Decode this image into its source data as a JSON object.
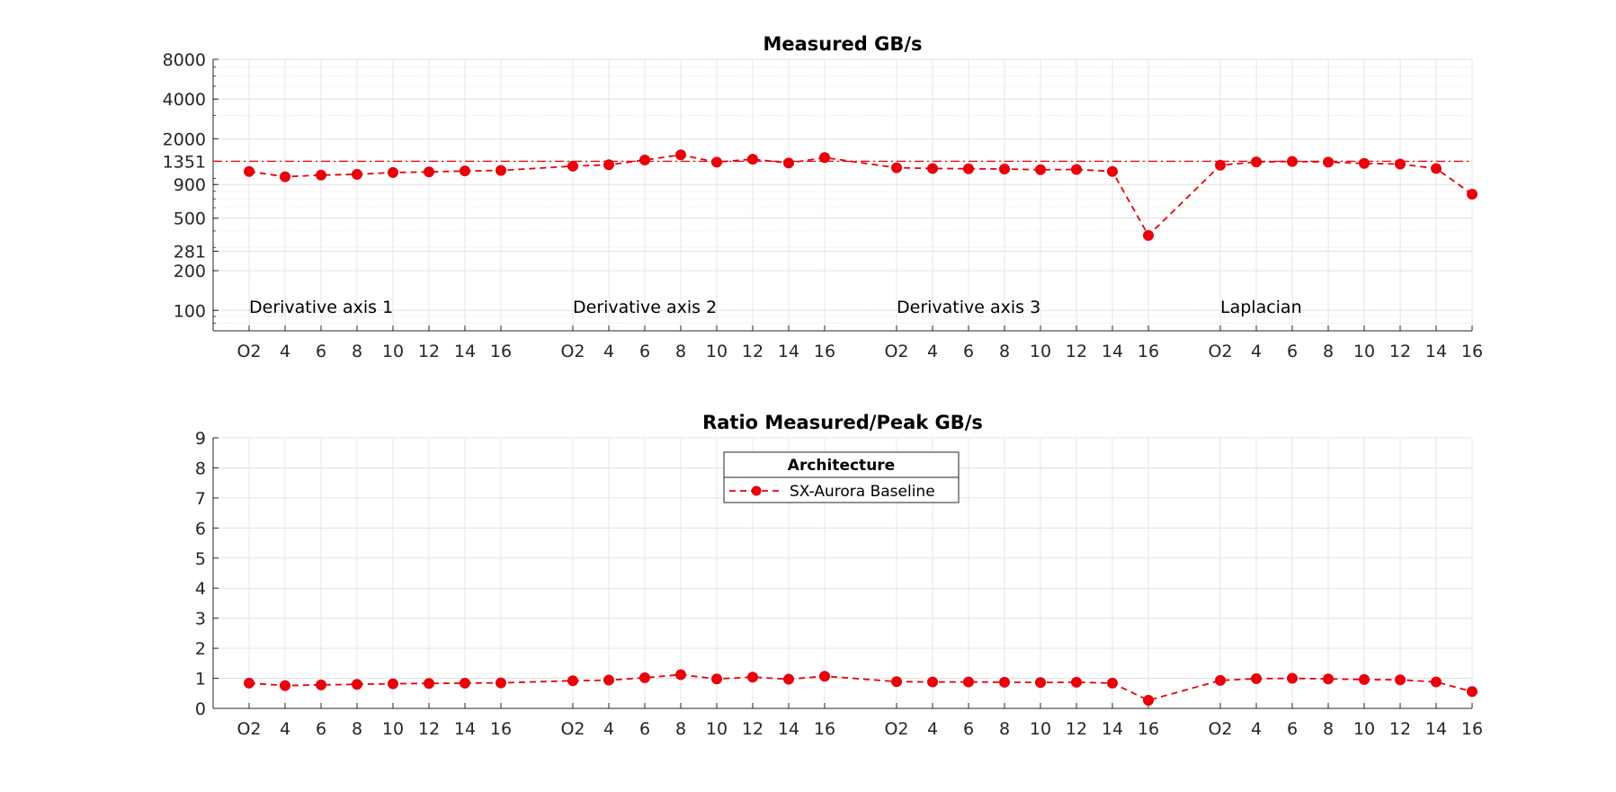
{
  "chart_data": [
    {
      "type": "line",
      "title": "Measured GB/s",
      "y_scale": "log",
      "ylim": [
        70,
        8000
      ],
      "y_ticks": [
        100,
        200,
        281,
        500,
        900,
        1351,
        2000,
        4000,
        8000
      ],
      "grid": true,
      "minor_grid": true,
      "reference_line": {
        "value": 1351,
        "style": "dash-dot",
        "color": "#e8000b"
      },
      "categories": [
        "O2",
        "4",
        "6",
        "8",
        "10",
        "12",
        "14",
        "16"
      ],
      "groups": [
        {
          "label": "Derivative axis 1",
          "values": [
            1130,
            1030,
            1060,
            1075,
            1110,
            1120,
            1140,
            1150
          ]
        },
        {
          "label": "Derivative axis 2",
          "values": [
            1240,
            1270,
            1380,
            1510,
            1330,
            1400,
            1310,
            1440
          ]
        },
        {
          "label": "Derivative axis 3",
          "values": [
            1205,
            1190,
            1185,
            1180,
            1165,
            1170,
            1130,
            370
          ]
        },
        {
          "label": "Laplacian",
          "values": [
            1260,
            1335,
            1345,
            1330,
            1300,
            1285,
            1190,
            760
          ]
        }
      ],
      "series": [
        {
          "name": "SX-Aurora Baseline",
          "color": "#e8000b",
          "line": "dashed",
          "marker": "circle"
        }
      ]
    },
    {
      "type": "line",
      "title": "Ratio Measured/Peak GB/s",
      "ylim": [
        0,
        9
      ],
      "y_ticks": [
        0,
        1,
        2,
        3,
        4,
        5,
        6,
        7,
        8,
        9
      ],
      "grid": true,
      "legend": {
        "title": "Architecture",
        "placement": "top-center"
      },
      "categories": [
        "O2",
        "4",
        "6",
        "8",
        "10",
        "12",
        "14",
        "16"
      ],
      "groups": [
        {
          "label": "Derivative axis 1",
          "values": [
            0.84,
            0.76,
            0.78,
            0.8,
            0.82,
            0.83,
            0.84,
            0.85
          ]
        },
        {
          "label": "Derivative axis 2",
          "values": [
            0.92,
            0.94,
            1.02,
            1.12,
            0.98,
            1.04,
            0.97,
            1.07
          ]
        },
        {
          "label": "Derivative axis 3",
          "values": [
            0.89,
            0.88,
            0.88,
            0.87,
            0.86,
            0.87,
            0.84,
            0.27
          ]
        },
        {
          "label": "Laplacian",
          "values": [
            0.93,
            0.99,
            1.0,
            0.98,
            0.96,
            0.95,
            0.88,
            0.56
          ]
        }
      ],
      "series": [
        {
          "name": "SX-Aurora Baseline",
          "color": "#e8000b",
          "line": "dashed",
          "marker": "circle"
        }
      ]
    }
  ]
}
